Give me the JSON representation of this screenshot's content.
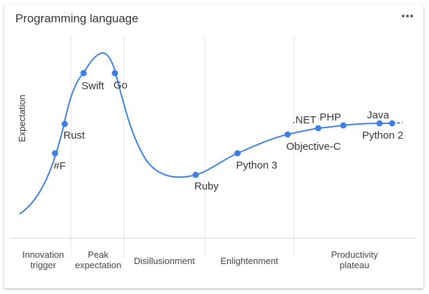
{
  "card": {
    "title": "Programming language",
    "menu_icon": "more-horizontal-icon"
  },
  "chart_data": {
    "type": "line",
    "title": "Programming language",
    "ylabel": "Expectation",
    "xlabel": "",
    "series_color": "#3f7fe3",
    "phases": [
      {
        "name": "innovation",
        "lines": [
          "Innovation",
          "trigger"
        ]
      },
      {
        "name": "peak",
        "lines": [
          "Peak",
          "expectation"
        ]
      },
      {
        "name": "disillusionment",
        "lines": [
          "Disillusionment"
        ]
      },
      {
        "name": "enlightenment",
        "lines": [
          "Enlightenment"
        ]
      },
      {
        "name": "productivity",
        "lines": [
          "Productivity",
          "plateau"
        ]
      }
    ],
    "points": [
      {
        "label": "#F"
      },
      {
        "label": "Rust"
      },
      {
        "label": "Swift"
      },
      {
        "label": "Go"
      },
      {
        "label": "Ruby"
      },
      {
        "label": "Python 3"
      },
      {
        "label": "Objective-C"
      },
      {
        "label": ".NET"
      },
      {
        "label": "PHP"
      },
      {
        "label": "Java"
      },
      {
        "label": "Python 2"
      }
    ]
  }
}
